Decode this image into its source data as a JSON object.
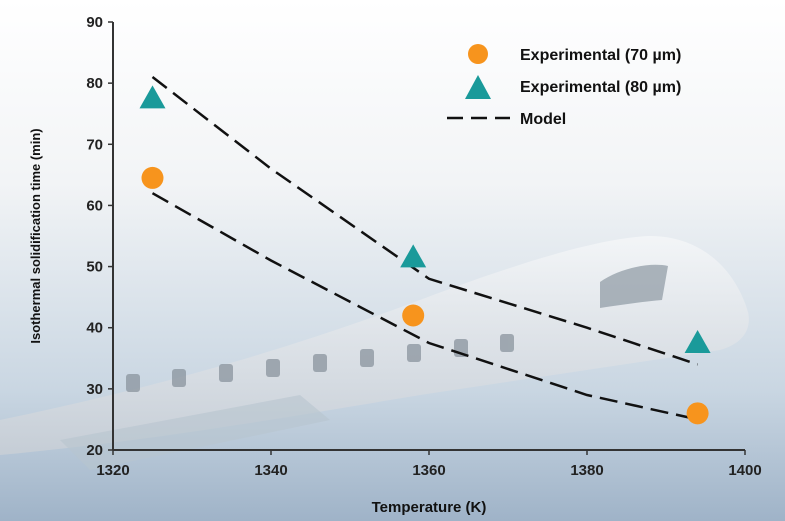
{
  "chart_data": {
    "type": "scatter",
    "xlabel": "Temperature (K)",
    "ylabel": "Isothermal solidification time (min)",
    "xlim": [
      1320,
      1400
    ],
    "ylim": [
      20,
      90
    ],
    "xticks": [
      1320,
      1340,
      1360,
      1380,
      1400
    ],
    "yticks": [
      20,
      30,
      40,
      50,
      60,
      70,
      80,
      90
    ],
    "legend_position": "top-right",
    "series": [
      {
        "name": "Experimental (70 µm)",
        "marker": "circle",
        "color": "#f7941d",
        "x": [
          1325,
          1358,
          1394
        ],
        "y": [
          64.5,
          42,
          26
        ]
      },
      {
        "name": "Experimental (80 µm)",
        "marker": "triangle",
        "color": "#1a9a9a",
        "x": [
          1325,
          1358,
          1394
        ],
        "y": [
          77.5,
          51.5,
          37.5
        ]
      },
      {
        "name": "Model",
        "marker": "dashed-line",
        "color": "#111111",
        "curves": [
          {
            "x": [
              1325,
              1340,
              1360,
              1380,
              1394
            ],
            "y": [
              62,
              51,
              37.5,
              29,
              25
            ]
          },
          {
            "x": [
              1325,
              1340,
              1360,
              1380,
              1394
            ],
            "y": [
              81,
              66,
              48,
              40,
              34
            ]
          }
        ]
      }
    ]
  }
}
